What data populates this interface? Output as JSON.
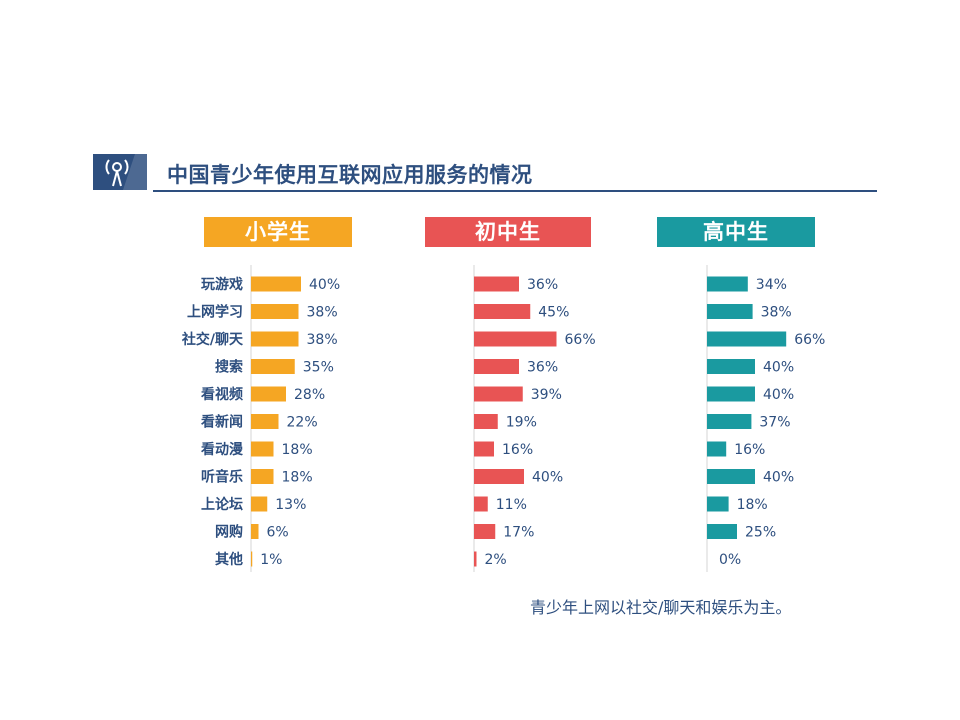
{
  "title": "中国青少年使用互联网应用服务的情况",
  "footnote": "青少年上网以社交/聊天和娱乐为主。",
  "colors": {
    "accent": "#2e4f7f",
    "primary": "#f5a623",
    "middle": "#e85454",
    "high": "#1a9aa0"
  },
  "icon": "signal-tower-icon",
  "chart_data": {
    "type": "bar",
    "orientation": "horizontal",
    "categories": [
      "玩游戏",
      "上网学习",
      "社交/聊天",
      "搜索",
      "看视频",
      "看新闻",
      "看动漫",
      "听音乐",
      "上论坛",
      "网购",
      "其他"
    ],
    "series": [
      {
        "name": "小学生",
        "values": [
          40,
          38,
          38,
          35,
          28,
          22,
          18,
          18,
          13,
          6,
          1
        ],
        "labels": [
          "40%",
          "38%",
          "38%",
          "35%",
          "28%",
          "22%",
          "18%",
          "18%",
          "13%",
          "6%",
          "1%"
        ]
      },
      {
        "name": "初中生",
        "values": [
          36,
          45,
          66,
          36,
          39,
          19,
          16,
          40,
          11,
          17,
          2
        ],
        "labels": [
          "36%",
          "45%",
          "66%",
          "36%",
          "39%",
          "19%",
          "16%",
          "40%",
          "11%",
          "17%",
          "2%"
        ]
      },
      {
        "name": "高中生",
        "values": [
          34,
          38,
          66,
          40,
          40,
          37,
          16,
          40,
          18,
          25,
          0
        ],
        "labels": [
          "34%",
          "38%",
          "66%",
          "40%",
          "40%",
          "37%",
          "16%",
          "40%",
          "18%",
          "25%",
          "0%"
        ]
      }
    ]
  }
}
